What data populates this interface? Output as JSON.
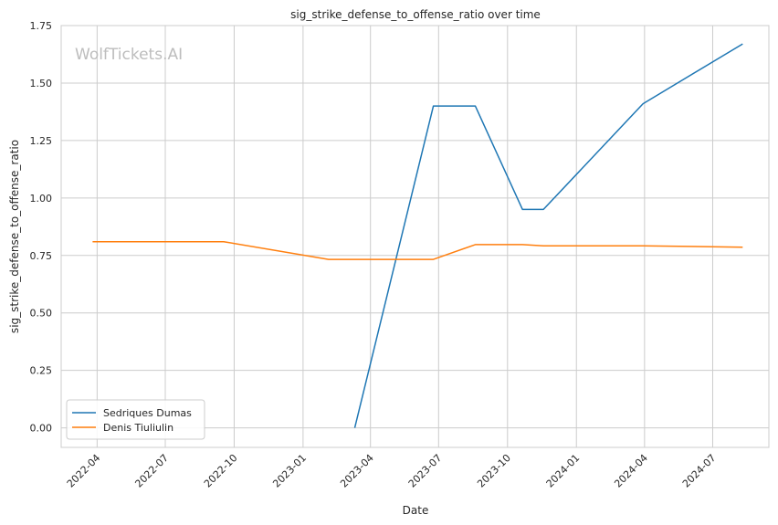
{
  "chart_data": {
    "type": "line",
    "title": "sig_strike_defense_to_offense_ratio over time",
    "xlabel": "Date",
    "ylabel": "sig_strike_defense_to_offense_ratio",
    "watermark": "WolfTickets.AI",
    "ylim": [
      -0.085,
      1.75
    ],
    "xlim": [
      "2022-02-12",
      "2024-09-14"
    ],
    "grid": true,
    "legend_position": "lower-left",
    "x_ticks": [
      "2022-04",
      "2022-07",
      "2022-10",
      "2023-01",
      "2023-04",
      "2023-07",
      "2023-10",
      "2024-01",
      "2024-04",
      "2024-07"
    ],
    "y_ticks": [
      "0.00",
      "0.25",
      "0.50",
      "0.75",
      "1.00",
      "1.25",
      "1.50",
      "1.75"
    ],
    "series": [
      {
        "name": "Sedriques Dumas",
        "color": "#1f77b4",
        "points": [
          {
            "x": "2023-03-11",
            "y": 0.0
          },
          {
            "x": "2023-06-24",
            "y": 1.4
          },
          {
            "x": "2023-08-19",
            "y": 1.4
          },
          {
            "x": "2023-10-21",
            "y": 0.95
          },
          {
            "x": "2023-11-18",
            "y": 0.95
          },
          {
            "x": "2024-03-30",
            "y": 1.41
          },
          {
            "x": "2024-08-10",
            "y": 1.67
          }
        ]
      },
      {
        "name": "Denis Tiuliulin",
        "color": "#ff7f0e",
        "points": [
          {
            "x": "2022-03-26",
            "y": 0.81
          },
          {
            "x": "2022-09-17",
            "y": 0.81
          },
          {
            "x": "2023-02-04",
            "y": 0.733
          },
          {
            "x": "2023-06-24",
            "y": 0.733
          },
          {
            "x": "2023-08-19",
            "y": 0.797
          },
          {
            "x": "2023-10-21",
            "y": 0.797
          },
          {
            "x": "2023-11-18",
            "y": 0.792
          },
          {
            "x": "2024-03-30",
            "y": 0.792
          },
          {
            "x": "2024-08-10",
            "y": 0.786
          }
        ]
      }
    ]
  }
}
